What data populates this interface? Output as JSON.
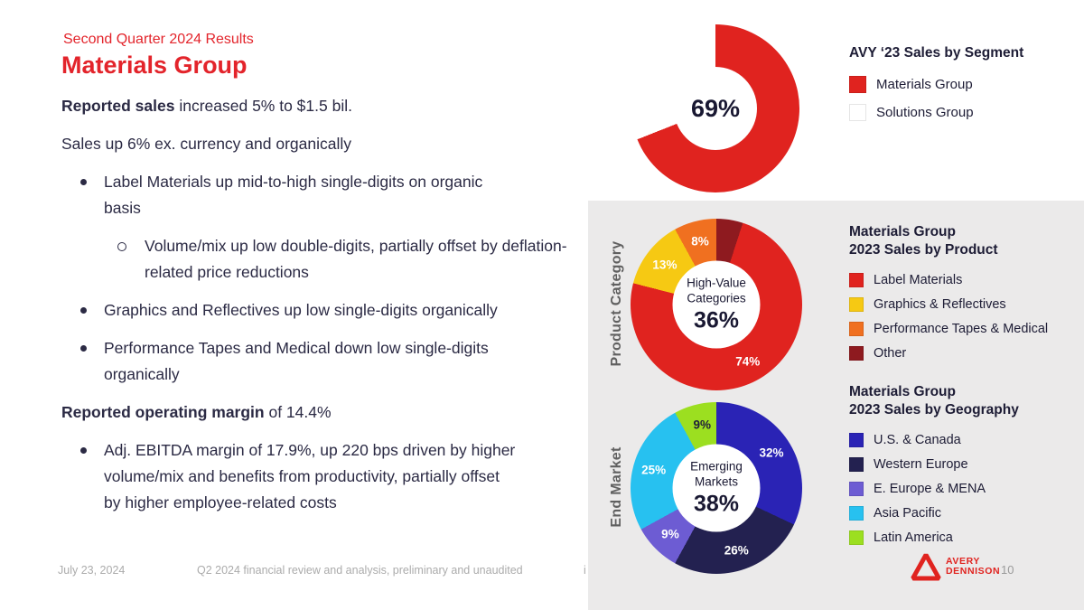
{
  "slide": {
    "eyebrow": "Second Quarter 2024 Results",
    "title": "Materials Group",
    "body": [
      {
        "lead": "Reported sales",
        "rest": " increased 5% to $1.5 bil."
      },
      {
        "lead": "",
        "rest": "Sales up 6% ex. currency and organically"
      },
      {
        "lead": "",
        "rest": "Label Materials up mid-to-high single-digits on organic basis"
      },
      {
        "lead": "",
        "rest": "Volume/mix up low double-digits, partially offset by deflation-related price reductions"
      },
      {
        "lead": "",
        "rest": "Graphics and Reflectives up low single-digits organically"
      },
      {
        "lead": "",
        "rest": "Performance Tapes and Medical down low single-digits organically"
      },
      {
        "lead": "Reported operating margin",
        "rest": " of 14.4%"
      },
      {
        "lead": "",
        "rest": "Adj. EBITDA margin of 17.9%, up 220 bps driven by higher volume/mix and benefits from productivity, partially offset by higher employee-related costs"
      }
    ],
    "footer": {
      "date": "July 23, 2024",
      "note": "Q2 2024 financial review and analysis, preliminary and unaudited",
      "stray": "i",
      "page": "10",
      "logo_line1": "AVERY",
      "logo_line2": "DENNISON"
    }
  },
  "colors": {
    "accent_red": "#e3242b",
    "panel_gray": "#ebeaea"
  },
  "chart_data": [
    {
      "type": "pie",
      "donut": true,
      "title": "AVY ‘23 Sales by Segment",
      "center_value": "69%",
      "slices": [
        {
          "label": "Materials Group",
          "value": 69,
          "color": "#e0231f",
          "pct": ""
        },
        {
          "label": "Solutions Group",
          "value": 31,
          "color": "#ffffff",
          "pct": ""
        }
      ],
      "legend": [
        {
          "label": "Materials Group",
          "color": "#e0231f"
        },
        {
          "label": "Solutions Group",
          "color": "#ffffff"
        }
      ]
    },
    {
      "type": "pie",
      "donut": true,
      "title": "Materials Group 2023 Sales by Product",
      "title_line1": "Materials Group",
      "title_line2": "2023 Sales by Product",
      "axis_label": "Product Category",
      "center_label": "High-Value Categories",
      "center_value": "36%",
      "slices": [
        {
          "label": "Other",
          "value": 5,
          "color": "#8e1a1f",
          "pct": ""
        },
        {
          "label": "Label Materials",
          "value": 74,
          "color": "#e0231f",
          "pct": "74%",
          "pct_color": "#ffffff"
        },
        {
          "label": "Graphics & Reflectives",
          "value": 13,
          "color": "#f6c913",
          "pct": "13%",
          "pct_color": "#ffffff"
        },
        {
          "label": "Performance Tapes & Medical",
          "value": 8,
          "color": "#f07020",
          "pct": "8%",
          "pct_color": "#ffffff"
        }
      ],
      "legend": [
        {
          "label": "Label Materials",
          "color": "#e0231f"
        },
        {
          "label": "Graphics & Reflectives",
          "color": "#f6c913"
        },
        {
          "label": "Performance Tapes & Medical",
          "color": "#f07020"
        },
        {
          "label": "Other",
          "color": "#8e1a1f"
        }
      ]
    },
    {
      "type": "pie",
      "donut": true,
      "title": "Materials Group 2023 Sales by Geography",
      "title_line1": "Materials Group",
      "title_line2": "2023 Sales by Geography",
      "axis_label": "End Market",
      "center_label": "Emerging Markets",
      "center_value": "38%",
      "slices": [
        {
          "label": "U.S. & Canada",
          "value": 32,
          "color": "#2a23b5",
          "pct": "32%",
          "pct_color": "#ffffff"
        },
        {
          "label": "Western Europe",
          "value": 26,
          "color": "#232150",
          "pct": "26%",
          "pct_color": "#ffffff"
        },
        {
          "label": "E. Europe & MENA",
          "value": 9,
          "color": "#6d5cd3",
          "pct": "9%",
          "pct_color": "#ffffff"
        },
        {
          "label": "Asia Pacific",
          "value": 25,
          "color": "#27c1f0",
          "pct": "25%",
          "pct_color": "#ffffff"
        },
        {
          "label": "Latin America",
          "value": 9,
          "color": "#9cdf20",
          "pct": "9%",
          "pct_color": "#20203a"
        }
      ],
      "legend": [
        {
          "label": "U.S. & Canada",
          "color": "#2a23b5"
        },
        {
          "label": "Western Europe",
          "color": "#232150"
        },
        {
          "label": "E. Europe & MENA",
          "color": "#6d5cd3"
        },
        {
          "label": "Asia Pacific",
          "color": "#27c1f0"
        },
        {
          "label": "Latin America",
          "color": "#9cdf20"
        }
      ]
    }
  ]
}
